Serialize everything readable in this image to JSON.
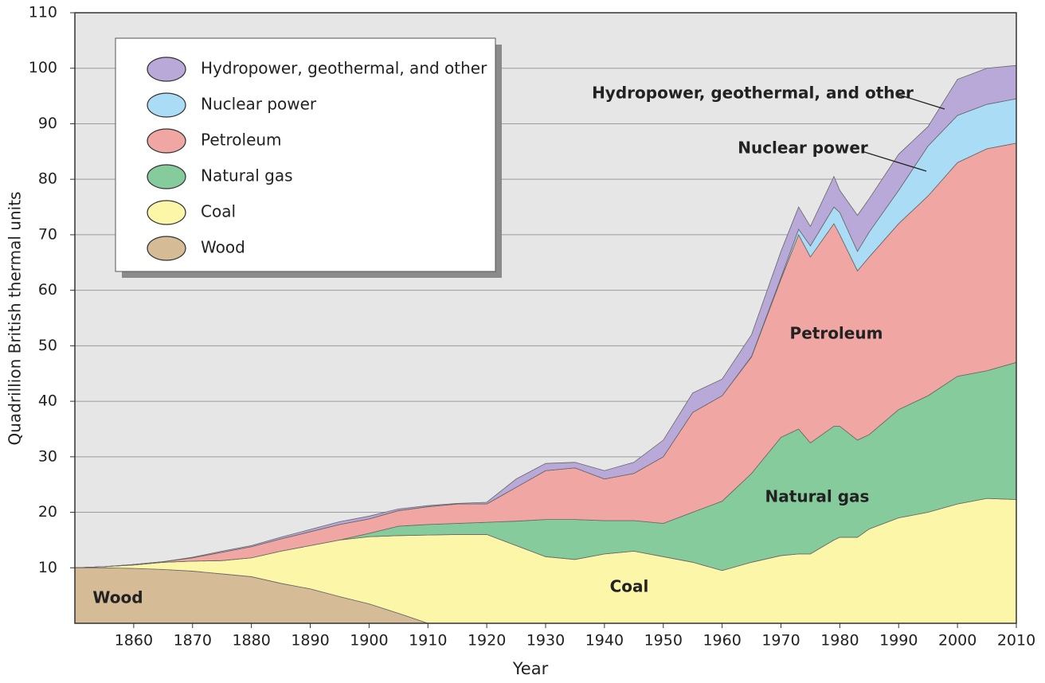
{
  "chart_data": {
    "type": "stacked-area",
    "x_label": "Year",
    "y_label": "Quadrillion British thermal units",
    "x": [
      1850,
      1855,
      1860,
      1865,
      1870,
      1875,
      1880,
      1885,
      1890,
      1895,
      1900,
      1905,
      1910,
      1915,
      1920,
      1925,
      1930,
      1935,
      1940,
      1945,
      1950,
      1955,
      1960,
      1965,
      1970,
      1973,
      1975,
      1979,
      1980,
      1983,
      1985,
      1990,
      1995,
      2000,
      2005,
      2010
    ],
    "series": [
      {
        "name": "Wood",
        "color": "#d6bb97",
        "values": [
          10,
          10,
          9.9,
          9.7,
          9.4,
          8.9,
          8.4,
          7.2,
          6.2,
          4.8,
          3.5,
          1.8,
          0,
          0,
          0,
          0,
          0,
          0,
          0,
          0,
          0,
          0,
          0,
          0,
          0,
          0,
          0,
          0,
          0,
          0,
          0,
          0,
          0,
          0,
          0,
          0
        ]
      },
      {
        "name": "Coal",
        "color": "#fcf6a8",
        "values": [
          0,
          0.2,
          0.6,
          1.3,
          1.8,
          2.4,
          3.4,
          5.8,
          7.8,
          10.2,
          12.1,
          14,
          15.9,
          16,
          16,
          14,
          12,
          11.5,
          12.5,
          13,
          12,
          11,
          9.5,
          11,
          12.2,
          12.5,
          12.5,
          15,
          15.5,
          15.5,
          17,
          19,
          20,
          21.5,
          22.5,
          22.3
        ]
      },
      {
        "name": "Natural gas",
        "color": "#86cb9c",
        "values": [
          0,
          0,
          0,
          0,
          0,
          0,
          0,
          0,
          0,
          0,
          0.6,
          1.7,
          1.9,
          2,
          2.2,
          4.4,
          6.7,
          7.2,
          6,
          5.5,
          6,
          9,
          12.5,
          16,
          21.3,
          22.5,
          20,
          20.5,
          20,
          17.5,
          17,
          19.5,
          21,
          23,
          23,
          24.7
        ]
      },
      {
        "name": "Petroleum",
        "color": "#f0a7a3",
        "values": [
          0,
          0,
          0.1,
          0.1,
          0.6,
          1.5,
          2,
          2.2,
          2.5,
          2.8,
          2.6,
          2.8,
          3.2,
          3.5,
          3.3,
          6.1,
          8.8,
          9.3,
          7.5,
          8.5,
          12,
          18,
          19,
          21,
          28.5,
          35,
          33.5,
          36.5,
          34.5,
          30.5,
          32,
          33.5,
          36,
          38.5,
          40,
          39.5
        ]
      },
      {
        "name": "Nuclear power",
        "color": "#aadcf5",
        "values": [
          0,
          0,
          0,
          0,
          0,
          0,
          0,
          0,
          0,
          0,
          0,
          0,
          0,
          0,
          0,
          0,
          0,
          0,
          0,
          0,
          0,
          0,
          0,
          0.1,
          0.3,
          1,
          2,
          3,
          4,
          3.5,
          4.5,
          6,
          9,
          8.5,
          8,
          8
        ]
      },
      {
        "name": "Hydropower, geothermal, and other",
        "color": "#b9a9d9",
        "values": [
          0,
          0,
          0,
          0,
          0.1,
          0.2,
          0.2,
          0.3,
          0.4,
          0.5,
          0.5,
          0.3,
          0.2,
          0.1,
          0.3,
          1.5,
          1.3,
          1,
          1.5,
          2,
          3,
          3.5,
          3,
          3.9,
          4.7,
          4,
          3.5,
          5.5,
          4,
          6.5,
          6,
          6.5,
          3.5,
          6.5,
          6.5,
          6
        ]
      }
    ],
    "xlim": [
      1850,
      2010
    ],
    "xticks": [
      1860,
      1870,
      1880,
      1890,
      1900,
      1910,
      1920,
      1930,
      1940,
      1950,
      1960,
      1970,
      1980,
      1990,
      2000,
      2010
    ],
    "ylim": [
      0,
      110
    ],
    "yticks": [
      10,
      20,
      30,
      40,
      50,
      60,
      70,
      80,
      90,
      100,
      110
    ],
    "grid": true,
    "legend": "upper-left"
  }
}
